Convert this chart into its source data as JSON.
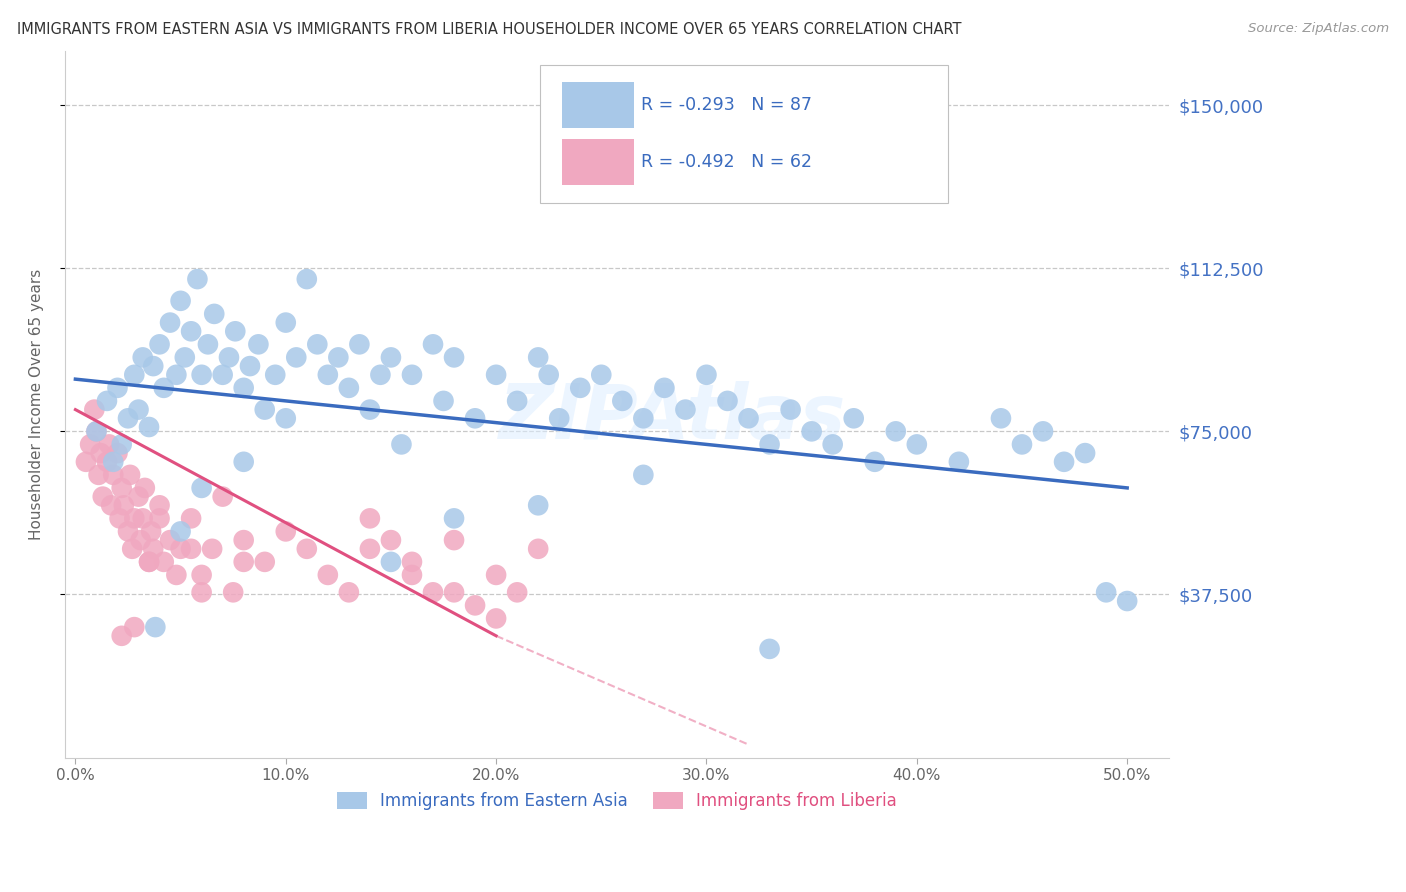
{
  "title": "IMMIGRANTS FROM EASTERN ASIA VS IMMIGRANTS FROM LIBERIA HOUSEHOLDER INCOME OVER 65 YEARS CORRELATION CHART",
  "source": "Source: ZipAtlas.com",
  "ylabel": "Householder Income Over 65 years",
  "ytick_labels": [
    "$37,500",
    "$75,000",
    "$112,500",
    "$150,000"
  ],
  "ytick_vals": [
    37500,
    75000,
    112500,
    150000
  ],
  "ylim": [
    0,
    162500
  ],
  "xlim": [
    -0.5,
    52
  ],
  "xlabel_ticks": [
    "0.0%",
    "10.0%",
    "20.0%",
    "30.0%",
    "40.0%",
    "50.0%"
  ],
  "xlabel_vals": [
    0,
    10,
    20,
    30,
    40,
    50
  ],
  "legend_blue_R": "-0.293",
  "legend_blue_N": "87",
  "legend_pink_R": "-0.492",
  "legend_pink_N": "62",
  "legend_blue_label": "Immigrants from Eastern Asia",
  "legend_pink_label": "Immigrants from Liberia",
  "blue_color": "#a8c8e8",
  "blue_line_color": "#3a6bbf",
  "pink_color": "#f0a8c0",
  "pink_line_color": "#e05080",
  "watermark": "ZIPAtlas",
  "grid_color": "#c8c8c8",
  "title_color": "#333333",
  "tick_color_right": "#4472c4",
  "blue_scatter_x": [
    1.0,
    1.5,
    1.8,
    2.0,
    2.2,
    2.5,
    2.8,
    3.0,
    3.2,
    3.5,
    3.7,
    4.0,
    4.2,
    4.5,
    4.8,
    5.0,
    5.2,
    5.5,
    5.8,
    6.0,
    6.3,
    6.6,
    7.0,
    7.3,
    7.6,
    8.0,
    8.3,
    8.7,
    9.0,
    9.5,
    10.0,
    10.5,
    11.0,
    11.5,
    12.0,
    12.5,
    13.0,
    13.5,
    14.0,
    14.5,
    15.0,
    15.5,
    16.0,
    17.0,
    17.5,
    18.0,
    19.0,
    20.0,
    21.0,
    22.0,
    22.5,
    23.0,
    24.0,
    25.0,
    26.0,
    27.0,
    28.0,
    29.0,
    30.0,
    31.0,
    32.0,
    33.0,
    34.0,
    35.0,
    36.0,
    37.0,
    38.0,
    39.0,
    40.0,
    42.0,
    44.0,
    45.0,
    46.0,
    47.0,
    48.0,
    49.0,
    50.0,
    27.0,
    33.0,
    22.0,
    15.0,
    18.0,
    10.0,
    8.0,
    6.0,
    5.0,
    3.8
  ],
  "blue_scatter_y": [
    75000,
    82000,
    68000,
    85000,
    72000,
    78000,
    88000,
    80000,
    92000,
    76000,
    90000,
    95000,
    85000,
    100000,
    88000,
    105000,
    92000,
    98000,
    110000,
    88000,
    95000,
    102000,
    88000,
    92000,
    98000,
    85000,
    90000,
    95000,
    80000,
    88000,
    100000,
    92000,
    110000,
    95000,
    88000,
    92000,
    85000,
    95000,
    80000,
    88000,
    92000,
    72000,
    88000,
    95000,
    82000,
    92000,
    78000,
    88000,
    82000,
    92000,
    88000,
    78000,
    85000,
    88000,
    82000,
    78000,
    85000,
    80000,
    88000,
    82000,
    78000,
    72000,
    80000,
    75000,
    72000,
    78000,
    68000,
    75000,
    72000,
    68000,
    78000,
    72000,
    75000,
    68000,
    70000,
    38000,
    36000,
    65000,
    25000,
    58000,
    45000,
    55000,
    78000,
    68000,
    62000,
    52000,
    30000
  ],
  "pink_scatter_x": [
    0.5,
    0.7,
    0.9,
    1.0,
    1.1,
    1.2,
    1.3,
    1.5,
    1.6,
    1.7,
    1.8,
    2.0,
    2.1,
    2.2,
    2.3,
    2.5,
    2.6,
    2.7,
    2.8,
    3.0,
    3.1,
    3.2,
    3.3,
    3.5,
    3.6,
    3.7,
    4.0,
    4.2,
    4.5,
    4.8,
    5.0,
    5.5,
    6.0,
    6.5,
    7.0,
    7.5,
    8.0,
    9.0,
    10.0,
    11.0,
    12.0,
    13.0,
    14.0,
    15.0,
    16.0,
    17.0,
    18.0,
    19.0,
    20.0,
    21.0,
    22.0,
    14.0,
    16.0,
    18.0,
    20.0,
    8.0,
    6.0,
    5.5,
    4.0,
    3.5,
    2.8,
    2.2
  ],
  "pink_scatter_y": [
    68000,
    72000,
    80000,
    75000,
    65000,
    70000,
    60000,
    68000,
    72000,
    58000,
    65000,
    70000,
    55000,
    62000,
    58000,
    52000,
    65000,
    48000,
    55000,
    60000,
    50000,
    55000,
    62000,
    45000,
    52000,
    48000,
    58000,
    45000,
    50000,
    42000,
    48000,
    55000,
    42000,
    48000,
    60000,
    38000,
    50000,
    45000,
    52000,
    48000,
    42000,
    38000,
    48000,
    50000,
    45000,
    38000,
    50000,
    35000,
    42000,
    38000,
    48000,
    55000,
    42000,
    38000,
    32000,
    45000,
    38000,
    48000,
    55000,
    45000,
    30000,
    28000
  ],
  "blue_trend_x0": 0,
  "blue_trend_x1": 50,
  "blue_trend_y0": 87000,
  "blue_trend_y1": 62000,
  "pink_trend_x0": 0,
  "pink_trend_x1": 20,
  "pink_trend_y0": 80000,
  "pink_trend_y1": 28000,
  "pink_dash_x0": 20,
  "pink_dash_x1": 32,
  "pink_dash_y0": 28000,
  "pink_dash_y1": 3000
}
